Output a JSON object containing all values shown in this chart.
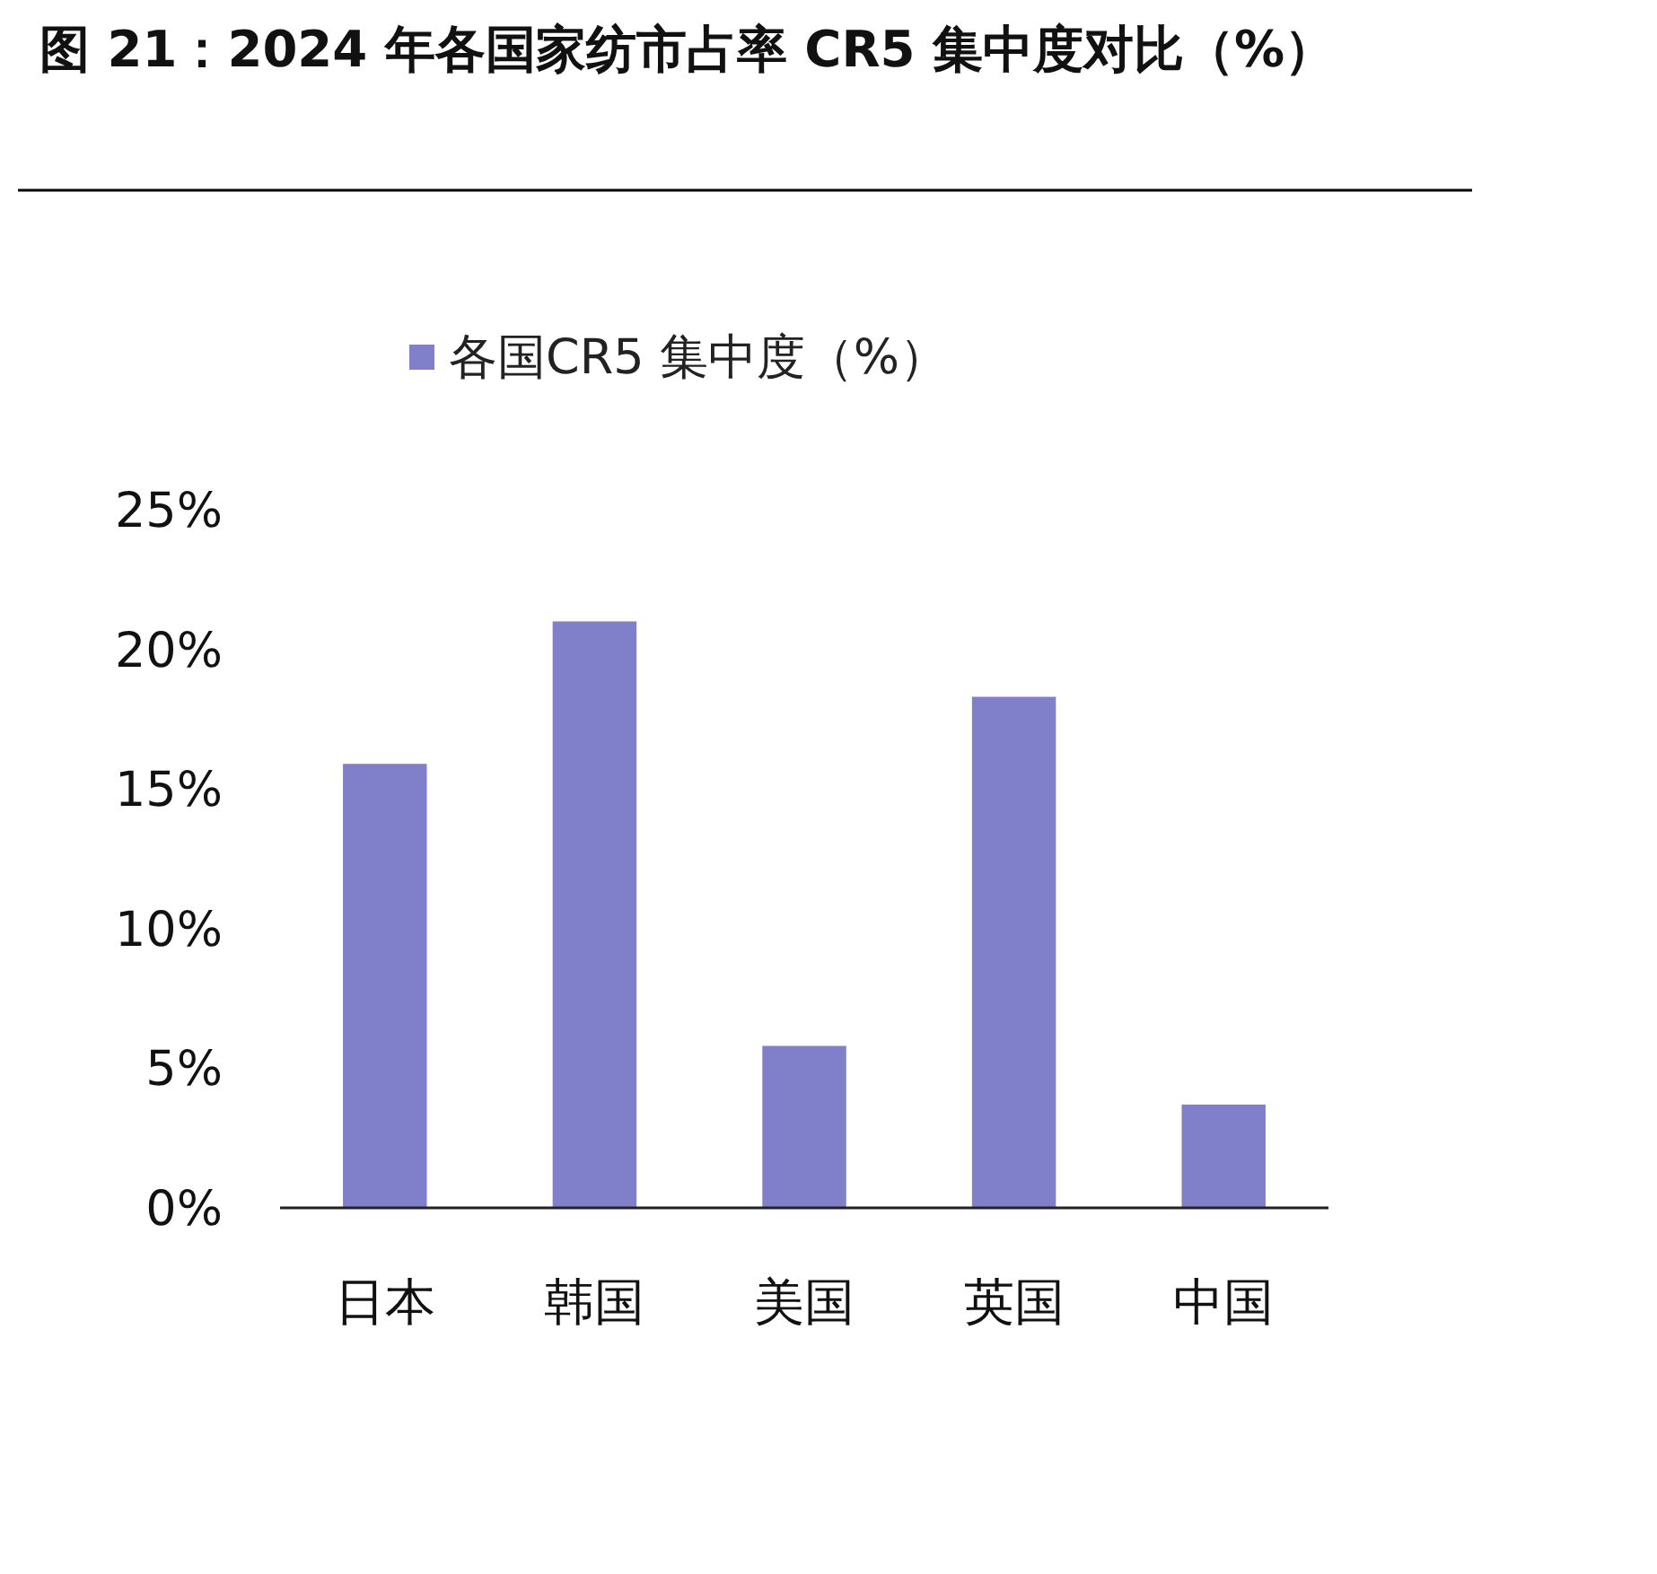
{
  "chart_data": {
    "type": "bar",
    "title": "图 21：2024 年各国家纺市占率 CR5 集中度对比（%）",
    "categories": [
      "日本",
      "韩国",
      "美国",
      "英国",
      "中国"
    ],
    "series": [
      {
        "name": "各国CR5 集中度（%）",
        "color": "#7f7fca",
        "values": [
          15.9,
          21.0,
          5.8,
          18.3,
          3.7
        ]
      }
    ],
    "ylim": [
      0,
      25
    ],
    "yticks": [
      {
        "value": 0,
        "label": "0%"
      },
      {
        "value": 5,
        "label": "5%"
      },
      {
        "value": 10,
        "label": "10%"
      },
      {
        "value": 15,
        "label": "15%"
      },
      {
        "value": 20,
        "label": "20%"
      },
      {
        "value": 25,
        "label": "25%"
      }
    ],
    "grid": false,
    "legend": "top"
  }
}
